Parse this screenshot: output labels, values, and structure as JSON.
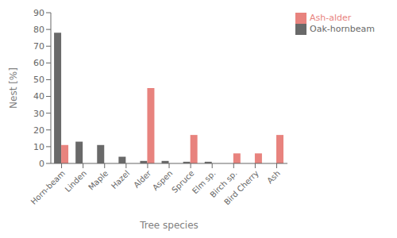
{
  "chart_data": {
    "type": "bar",
    "categories": [
      "Horn-beam",
      "Linden",
      "Maple",
      "Hazel",
      "Alder",
      "Aspen",
      "Spruce",
      "Elm sp.",
      "Birch sp.",
      "Bird Cherry",
      "Ash"
    ],
    "series": [
      {
        "name": "Oak-hornbeam",
        "color": "#696969",
        "values": [
          78,
          13,
          11,
          4,
          1.5,
          1.5,
          1,
          1,
          0,
          0,
          0
        ]
      },
      {
        "name": "Ash-alder",
        "color": "#e8837e",
        "values": [
          11,
          0,
          0,
          0,
          45,
          0,
          17,
          0,
          6,
          6,
          17
        ]
      }
    ],
    "xlabel": "Tree species",
    "ylabel": "Nest [%]",
    "ylim": [
      0,
      90
    ],
    "yticks": [
      0,
      10,
      20,
      30,
      40,
      50,
      60,
      70,
      80,
      90
    ],
    "grid": false,
    "legend": "right"
  }
}
